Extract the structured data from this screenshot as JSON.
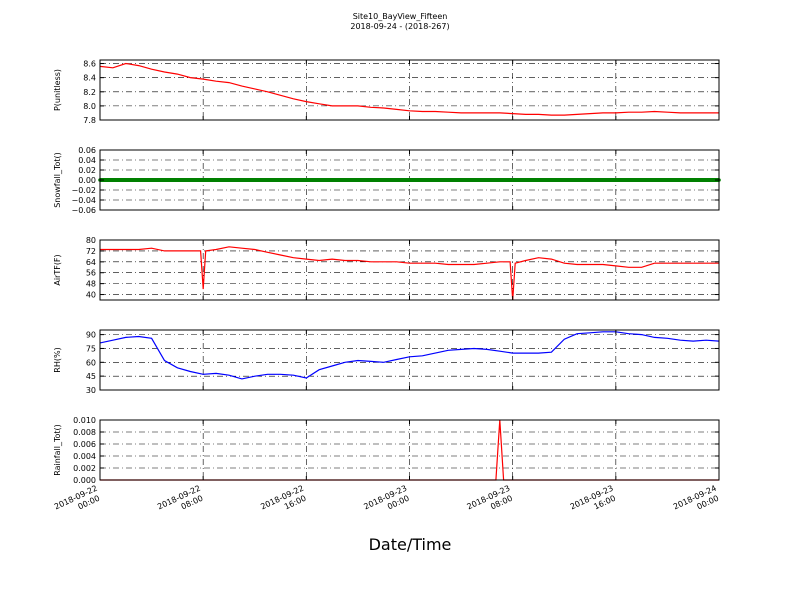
{
  "figure": {
    "title": "Site10_BayView_Fifteen",
    "subtitle": "2018-09-24 - (2018-267)",
    "xlabel": "Date/Time",
    "xticks": [
      {
        "line1": "2018-09-22",
        "line2": "00:00"
      },
      {
        "line1": "2018-09-22",
        "line2": "08:00"
      },
      {
        "line1": "2018-09-22",
        "line2": "16:00"
      },
      {
        "line1": "2018-09-23",
        "line2": "00:00"
      },
      {
        "line1": "2018-09-23",
        "line2": "08:00"
      },
      {
        "line1": "2018-09-23",
        "line2": "16:00"
      },
      {
        "line1": "2018-09-24",
        "line2": "00:00"
      }
    ]
  },
  "chart_data": [
    {
      "type": "line",
      "ylabel": "P(unitless)",
      "ylim": [
        7.8,
        8.65
      ],
      "yticks": [
        "8.6",
        "8.4",
        "8.2",
        "8.0",
        "7.8"
      ],
      "ytick_values": [
        8.6,
        8.4,
        8.2,
        8.0,
        7.8
      ],
      "color": "#ff0000",
      "grid": true,
      "x_hours": [
        0,
        1,
        2,
        3,
        4,
        5,
        6,
        7,
        8,
        9,
        10,
        11,
        12,
        13,
        14,
        15,
        16,
        17,
        18,
        19,
        20,
        21,
        22,
        23,
        24,
        25,
        26,
        27,
        28,
        29,
        30,
        31,
        32,
        33,
        34,
        35,
        36,
        37,
        38,
        39,
        40,
        41,
        42,
        43,
        44,
        45,
        46,
        47,
        48
      ],
      "values": [
        8.56,
        8.54,
        8.6,
        8.57,
        8.52,
        8.48,
        8.45,
        8.4,
        8.38,
        8.35,
        8.33,
        8.28,
        8.24,
        8.2,
        8.15,
        8.1,
        8.06,
        8.03,
        8.0,
        8.0,
        8.0,
        7.98,
        7.97,
        7.95,
        7.93,
        7.92,
        7.92,
        7.91,
        7.9,
        7.9,
        7.9,
        7.9,
        7.89,
        7.88,
        7.88,
        7.87,
        7.87,
        7.88,
        7.89,
        7.9,
        7.9,
        7.91,
        7.91,
        7.92,
        7.91,
        7.9,
        7.9,
        7.9,
        7.9
      ]
    },
    {
      "type": "scatter",
      "ylabel": "Snowfall_Tot()",
      "ylim": [
        -0.06,
        0.06
      ],
      "yticks": [
        "0.06",
        "0.04",
        "0.02",
        "0.00",
        "−0.02",
        "−0.04",
        "−0.06"
      ],
      "ytick_values": [
        0.06,
        0.04,
        0.02,
        0.0,
        -0.02,
        -0.04,
        -0.06
      ],
      "color": "#008000",
      "grid": true,
      "x_hours": [
        0,
        48
      ],
      "values": [
        0.0,
        0.0
      ]
    },
    {
      "type": "line",
      "ylabel": "AirTF(F)",
      "ylim": [
        36,
        80
      ],
      "yticks": [
        "80",
        "72",
        "64",
        "56",
        "48",
        "40"
      ],
      "ytick_values": [
        80,
        72,
        64,
        56,
        48,
        40
      ],
      "color": "#ff0000",
      "grid": true,
      "x_hours": [
        0,
        1,
        2,
        3,
        4,
        5,
        6,
        7,
        7.8,
        8.0,
        8.2,
        9,
        10,
        11,
        12,
        13,
        14,
        15,
        16,
        17,
        18,
        19,
        20,
        21,
        22,
        23,
        24,
        25,
        26,
        27,
        28,
        29,
        30,
        31,
        31.8,
        32.0,
        32.2,
        33,
        34,
        35,
        36,
        37,
        38,
        39,
        40,
        41,
        42,
        43,
        44,
        45,
        46,
        47,
        48
      ],
      "values": [
        73,
        73,
        73,
        73,
        74,
        72,
        72,
        72,
        72,
        44,
        72,
        73,
        75,
        74,
        73,
        71,
        69,
        67,
        66,
        65,
        66,
        65,
        65,
        64,
        64,
        64,
        63,
        63,
        63,
        62,
        62,
        62,
        63,
        64,
        64,
        36,
        63,
        65,
        67,
        66,
        63,
        62,
        62,
        62,
        61,
        60,
        60,
        63,
        63,
        63,
        63,
        63,
        63
      ]
    },
    {
      "type": "line",
      "ylabel": "RH(%)",
      "ylim": [
        30,
        95
      ],
      "yticks": [
        "90",
        "75",
        "60",
        "45",
        "30"
      ],
      "ytick_values": [
        90,
        75,
        60,
        45,
        30
      ],
      "color": "#0000ff",
      "grid": true,
      "x_hours": [
        0,
        1,
        2,
        3,
        4,
        5,
        6,
        7,
        8,
        9,
        10,
        11,
        12,
        13,
        14,
        15,
        16,
        17,
        18,
        19,
        20,
        21,
        22,
        23,
        24,
        25,
        26,
        27,
        28,
        29,
        30,
        31,
        32,
        33,
        34,
        35,
        36,
        37,
        38,
        39,
        40,
        41,
        42,
        43,
        44,
        45,
        46,
        47,
        48
      ],
      "values": [
        81,
        84,
        87,
        88,
        86,
        62,
        54,
        50,
        47,
        48,
        46,
        42,
        45,
        47,
        47,
        46,
        43,
        52,
        56,
        60,
        62,
        61,
        60,
        63,
        66,
        67,
        70,
        73,
        74,
        75,
        74,
        72,
        70,
        70,
        70,
        71,
        85,
        91,
        92,
        93,
        93,
        91,
        90,
        87,
        86,
        84,
        83,
        84,
        83
      ]
    },
    {
      "type": "line",
      "ylabel": "Rainfall_Tot()",
      "ylim": [
        0,
        0.01
      ],
      "yticks": [
        "0.010",
        "0.008",
        "0.006",
        "0.004",
        "0.002",
        "0.000"
      ],
      "ytick_values": [
        0.01,
        0.008,
        0.006,
        0.004,
        0.002,
        0.0
      ],
      "color": "#ff0000",
      "grid": true,
      "x_hours": [
        0,
        30.7,
        31.0,
        31.3,
        48
      ],
      "values": [
        0,
        0,
        0.01,
        0,
        0
      ]
    }
  ]
}
